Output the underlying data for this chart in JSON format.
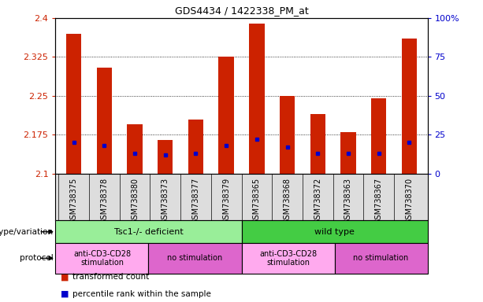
{
  "title": "GDS4434 / 1422338_PM_at",
  "samples": [
    "GSM738375",
    "GSM738378",
    "GSM738380",
    "GSM738373",
    "GSM738377",
    "GSM738379",
    "GSM738365",
    "GSM738368",
    "GSM738372",
    "GSM738363",
    "GSM738367",
    "GSM738370"
  ],
  "transformed_count": [
    2.37,
    2.305,
    2.195,
    2.165,
    2.205,
    2.325,
    2.39,
    2.25,
    2.215,
    2.18,
    2.245,
    2.36
  ],
  "percentile_rank": [
    20,
    18,
    13,
    12,
    13,
    18,
    22,
    17,
    13,
    13,
    13,
    20
  ],
  "ymin": 2.1,
  "ymax": 2.4,
  "yticks": [
    2.1,
    2.175,
    2.25,
    2.325,
    2.4
  ],
  "right_yticks": [
    0,
    25,
    50,
    75,
    100
  ],
  "bar_color": "#CC2200",
  "dot_color": "#0000CC",
  "grid_color": "#000000",
  "genotype_groups": [
    {
      "label": "Tsc1-/- deficient",
      "start": 0,
      "end": 6,
      "color": "#99EE99"
    },
    {
      "label": "wild type",
      "start": 6,
      "end": 12,
      "color": "#44CC44"
    }
  ],
  "protocol_groups": [
    {
      "label": "anti-CD3-CD28\nstimulation",
      "start": 0,
      "end": 3,
      "color": "#FFAAEE"
    },
    {
      "label": "no stimulation",
      "start": 3,
      "end": 6,
      "color": "#DD66CC"
    },
    {
      "label": "anti-CD3-CD28\nstimulation",
      "start": 6,
      "end": 9,
      "color": "#FFAAEE"
    },
    {
      "label": "no stimulation",
      "start": 9,
      "end": 12,
      "color": "#DD66CC"
    }
  ],
  "tick_label_color_left": "#CC2200",
  "tick_label_color_right": "#0000CC",
  "bar_width": 0.5,
  "xtick_bg_color": "#DDDDDD"
}
